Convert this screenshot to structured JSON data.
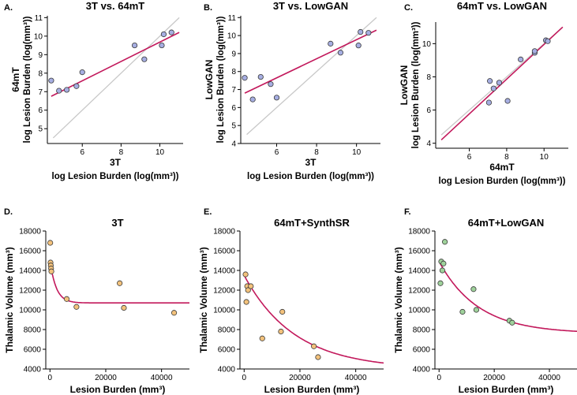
{
  "colors": {
    "fit_line": "#c2185b",
    "identity_line": "#c8c8c8",
    "scatter_blue": "#a6aee2",
    "scatter_orange": "#f3c27c",
    "scatter_green": "#9fd29b",
    "axis": "#000000"
  },
  "chart_data": [
    {
      "type": "scatter",
      "panel_label": "A.",
      "title": "3T vs. 64mT",
      "xlabel_short": "3T",
      "xlabel_long": "log Lesion Burden (log(mm³))",
      "ylabel_short": "64mT",
      "ylabel_long": "log Lesion Burden (log(mm³))",
      "xlim": [
        4.2,
        11.2
      ],
      "ylim": [
        4.2,
        11.1
      ],
      "xticks": [
        6,
        8,
        10
      ],
      "yticks": [
        5,
        6,
        7,
        8,
        9,
        10,
        11
      ],
      "x": [
        4.4,
        4.8,
        5.2,
        5.7,
        6.0,
        8.7,
        9.2,
        10.1,
        10.2,
        10.6
      ],
      "y": [
        7.6,
        7.05,
        7.1,
        7.3,
        8.05,
        9.5,
        8.75,
        9.5,
        10.1,
        10.2
      ],
      "fit_line": {
        "x": [
          4.4,
          11.0
        ],
        "y": [
          6.75,
          10.2
        ]
      },
      "identity_line": {
        "x": [
          4.5,
          11.0
        ],
        "y": [
          4.5,
          11.0
        ]
      }
    },
    {
      "type": "scatter",
      "panel_label": "B.",
      "title": "3T vs. LowGAN",
      "xlabel_short": "3T",
      "xlabel_long": "log Lesion Burden (log(mm³))",
      "ylabel_short": "LowGAN",
      "ylabel_long": "log Lesion Burden (log(mm³))",
      "xlim": [
        4.2,
        11.2
      ],
      "ylim": [
        4.0,
        11.1
      ],
      "xticks": [
        6,
        8,
        10
      ],
      "yticks": [
        4,
        5,
        6,
        7,
        8,
        9,
        10,
        11
      ],
      "x": [
        4.4,
        4.8,
        5.2,
        5.7,
        6.0,
        8.7,
        9.2,
        10.1,
        10.2,
        10.6
      ],
      "y": [
        7.65,
        6.45,
        7.7,
        7.3,
        6.55,
        9.55,
        9.05,
        9.45,
        10.2,
        10.15
      ],
      "fit_line": {
        "x": [
          4.4,
          11.0
        ],
        "y": [
          6.8,
          10.3
        ]
      },
      "identity_line": {
        "x": [
          4.5,
          11.0
        ],
        "y": [
          4.5,
          11.0
        ]
      }
    },
    {
      "type": "scatter",
      "panel_label": "C.",
      "title": "64mT vs. LowGAN",
      "xlabel_short": "64mT",
      "xlabel_long": "log Lesion Burden (log(mm³))",
      "ylabel_short": "LowGAN",
      "ylabel_long": "log Lesion Burden (log(mm³))",
      "xlim": [
        4.2,
        11.3
      ],
      "ylim": [
        3.7,
        11.3
      ],
      "xticks": [
        6,
        8,
        10
      ],
      "yticks": [
        4,
        6,
        8,
        10
      ],
      "x": [
        7.05,
        7.1,
        7.3,
        7.6,
        8.05,
        8.75,
        9.5,
        9.5,
        10.1,
        10.2
      ],
      "y": [
        6.45,
        7.75,
        7.3,
        7.65,
        6.55,
        9.05,
        9.45,
        9.55,
        10.2,
        10.15
      ],
      "fit_line": {
        "x": [
          4.5,
          11.0
        ],
        "y": [
          4.2,
          11.0
        ]
      },
      "identity_line": {
        "x": [
          4.5,
          11.0
        ],
        "y": [
          4.5,
          11.0
        ]
      }
    },
    {
      "type": "scatter",
      "panel_label": "D.",
      "title": "3T",
      "xlabel": "Lesion Burden (mm³)",
      "ylabel": "Thalamic Volume (mm³)",
      "xlim": [
        -1500,
        50000
      ],
      "ylim": [
        4000,
        18000
      ],
      "xticks": [
        0,
        20000,
        40000
      ],
      "yticks": [
        4000,
        6000,
        8000,
        10000,
        12000,
        14000,
        16000,
        18000
      ],
      "x": [
        100,
        200,
        300,
        400,
        500,
        6000,
        9500,
        25000,
        26500,
        44500
      ],
      "y": [
        16800,
        14800,
        14500,
        14200,
        13900,
        11100,
        10300,
        12700,
        10200,
        9700
      ],
      "fit_curve": {
        "a": 4300,
        "b": 10700,
        "k": 0.00045
      }
    },
    {
      "type": "scatter",
      "panel_label": "E.",
      "title": "64mT+SynthSR",
      "xlabel": "Lesion Burden (mm³)",
      "ylabel": "Thalamic Volume (mm³)",
      "xlim": [
        -1500,
        50000
      ],
      "ylim": [
        4000,
        18000
      ],
      "xticks": [
        0,
        20000,
        40000
      ],
      "yticks": [
        4000,
        6000,
        8000,
        10000,
        12000,
        14000,
        16000,
        18000
      ],
      "x": [
        500,
        800,
        1100,
        1400,
        2400,
        6500,
        13200,
        13700,
        25000,
        26500
      ],
      "y": [
        13600,
        10800,
        12400,
        12000,
        12400,
        7100,
        7800,
        9800,
        6300,
        5200
      ],
      "fit_curve": {
        "a": 9500,
        "b": 4000,
        "k": 5.5e-05
      }
    },
    {
      "type": "scatter",
      "panel_label": "F.",
      "title": "64mT+LowGAN",
      "xlabel": "Lesion Burden (mm³)",
      "ylabel": "Thalamic Volume (mm³)",
      "xlim": [
        -1500,
        50000
      ],
      "ylim": [
        4000,
        18000
      ],
      "xticks": [
        0,
        20000,
        40000
      ],
      "yticks": [
        4000,
        6000,
        8000,
        10000,
        12000,
        14000,
        16000,
        18000
      ],
      "x": [
        500,
        800,
        1200,
        1600,
        2100,
        8500,
        12500,
        13500,
        25500,
        26500
      ],
      "y": [
        12700,
        14900,
        14000,
        14700,
        16900,
        9800,
        12100,
        10000,
        8900,
        8700
      ],
      "fit_curve": {
        "a": 7300,
        "b": 7600,
        "k": 7e-05
      }
    }
  ]
}
